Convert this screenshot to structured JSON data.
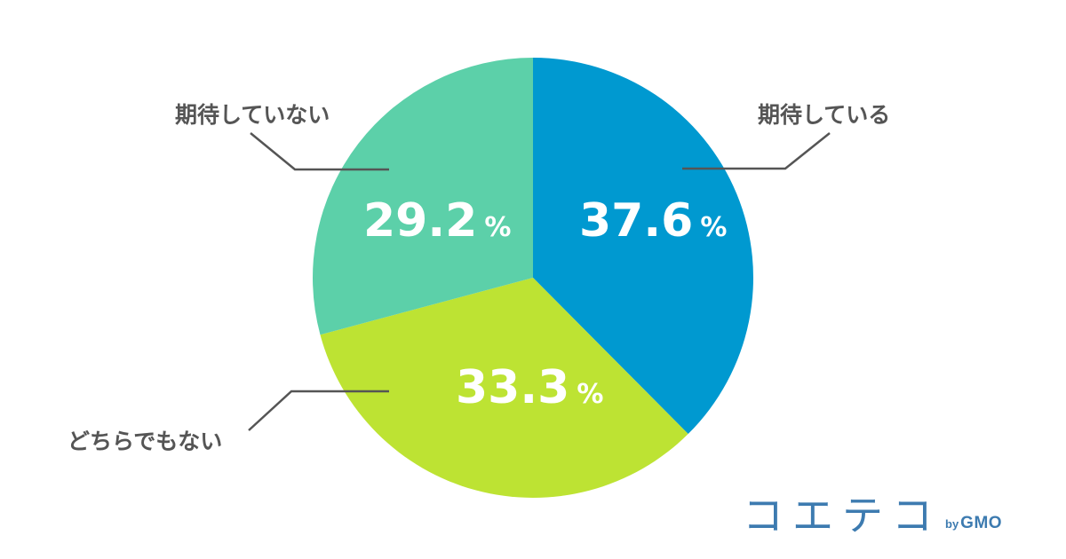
{
  "chart_data": {
    "type": "pie",
    "unit": "%",
    "slices": [
      {
        "label": "期待している",
        "value": 37.6,
        "value_text": "37.6",
        "color": "#0099d0"
      },
      {
        "label": "どちらでもない",
        "value": 33.3,
        "value_text": "33.3",
        "color": "#bde333"
      },
      {
        "label": "期待していない",
        "value": 29.2,
        "value_text": "29.2",
        "color": "#5cd0a9"
      }
    ]
  },
  "logo": {
    "main": "コエテコ",
    "by": "by",
    "brand": "GMO"
  },
  "colors": {
    "label_text": "#555555",
    "value_text": "#ffffff",
    "leader_line": "#555555",
    "logo": "#3d7bb0"
  }
}
